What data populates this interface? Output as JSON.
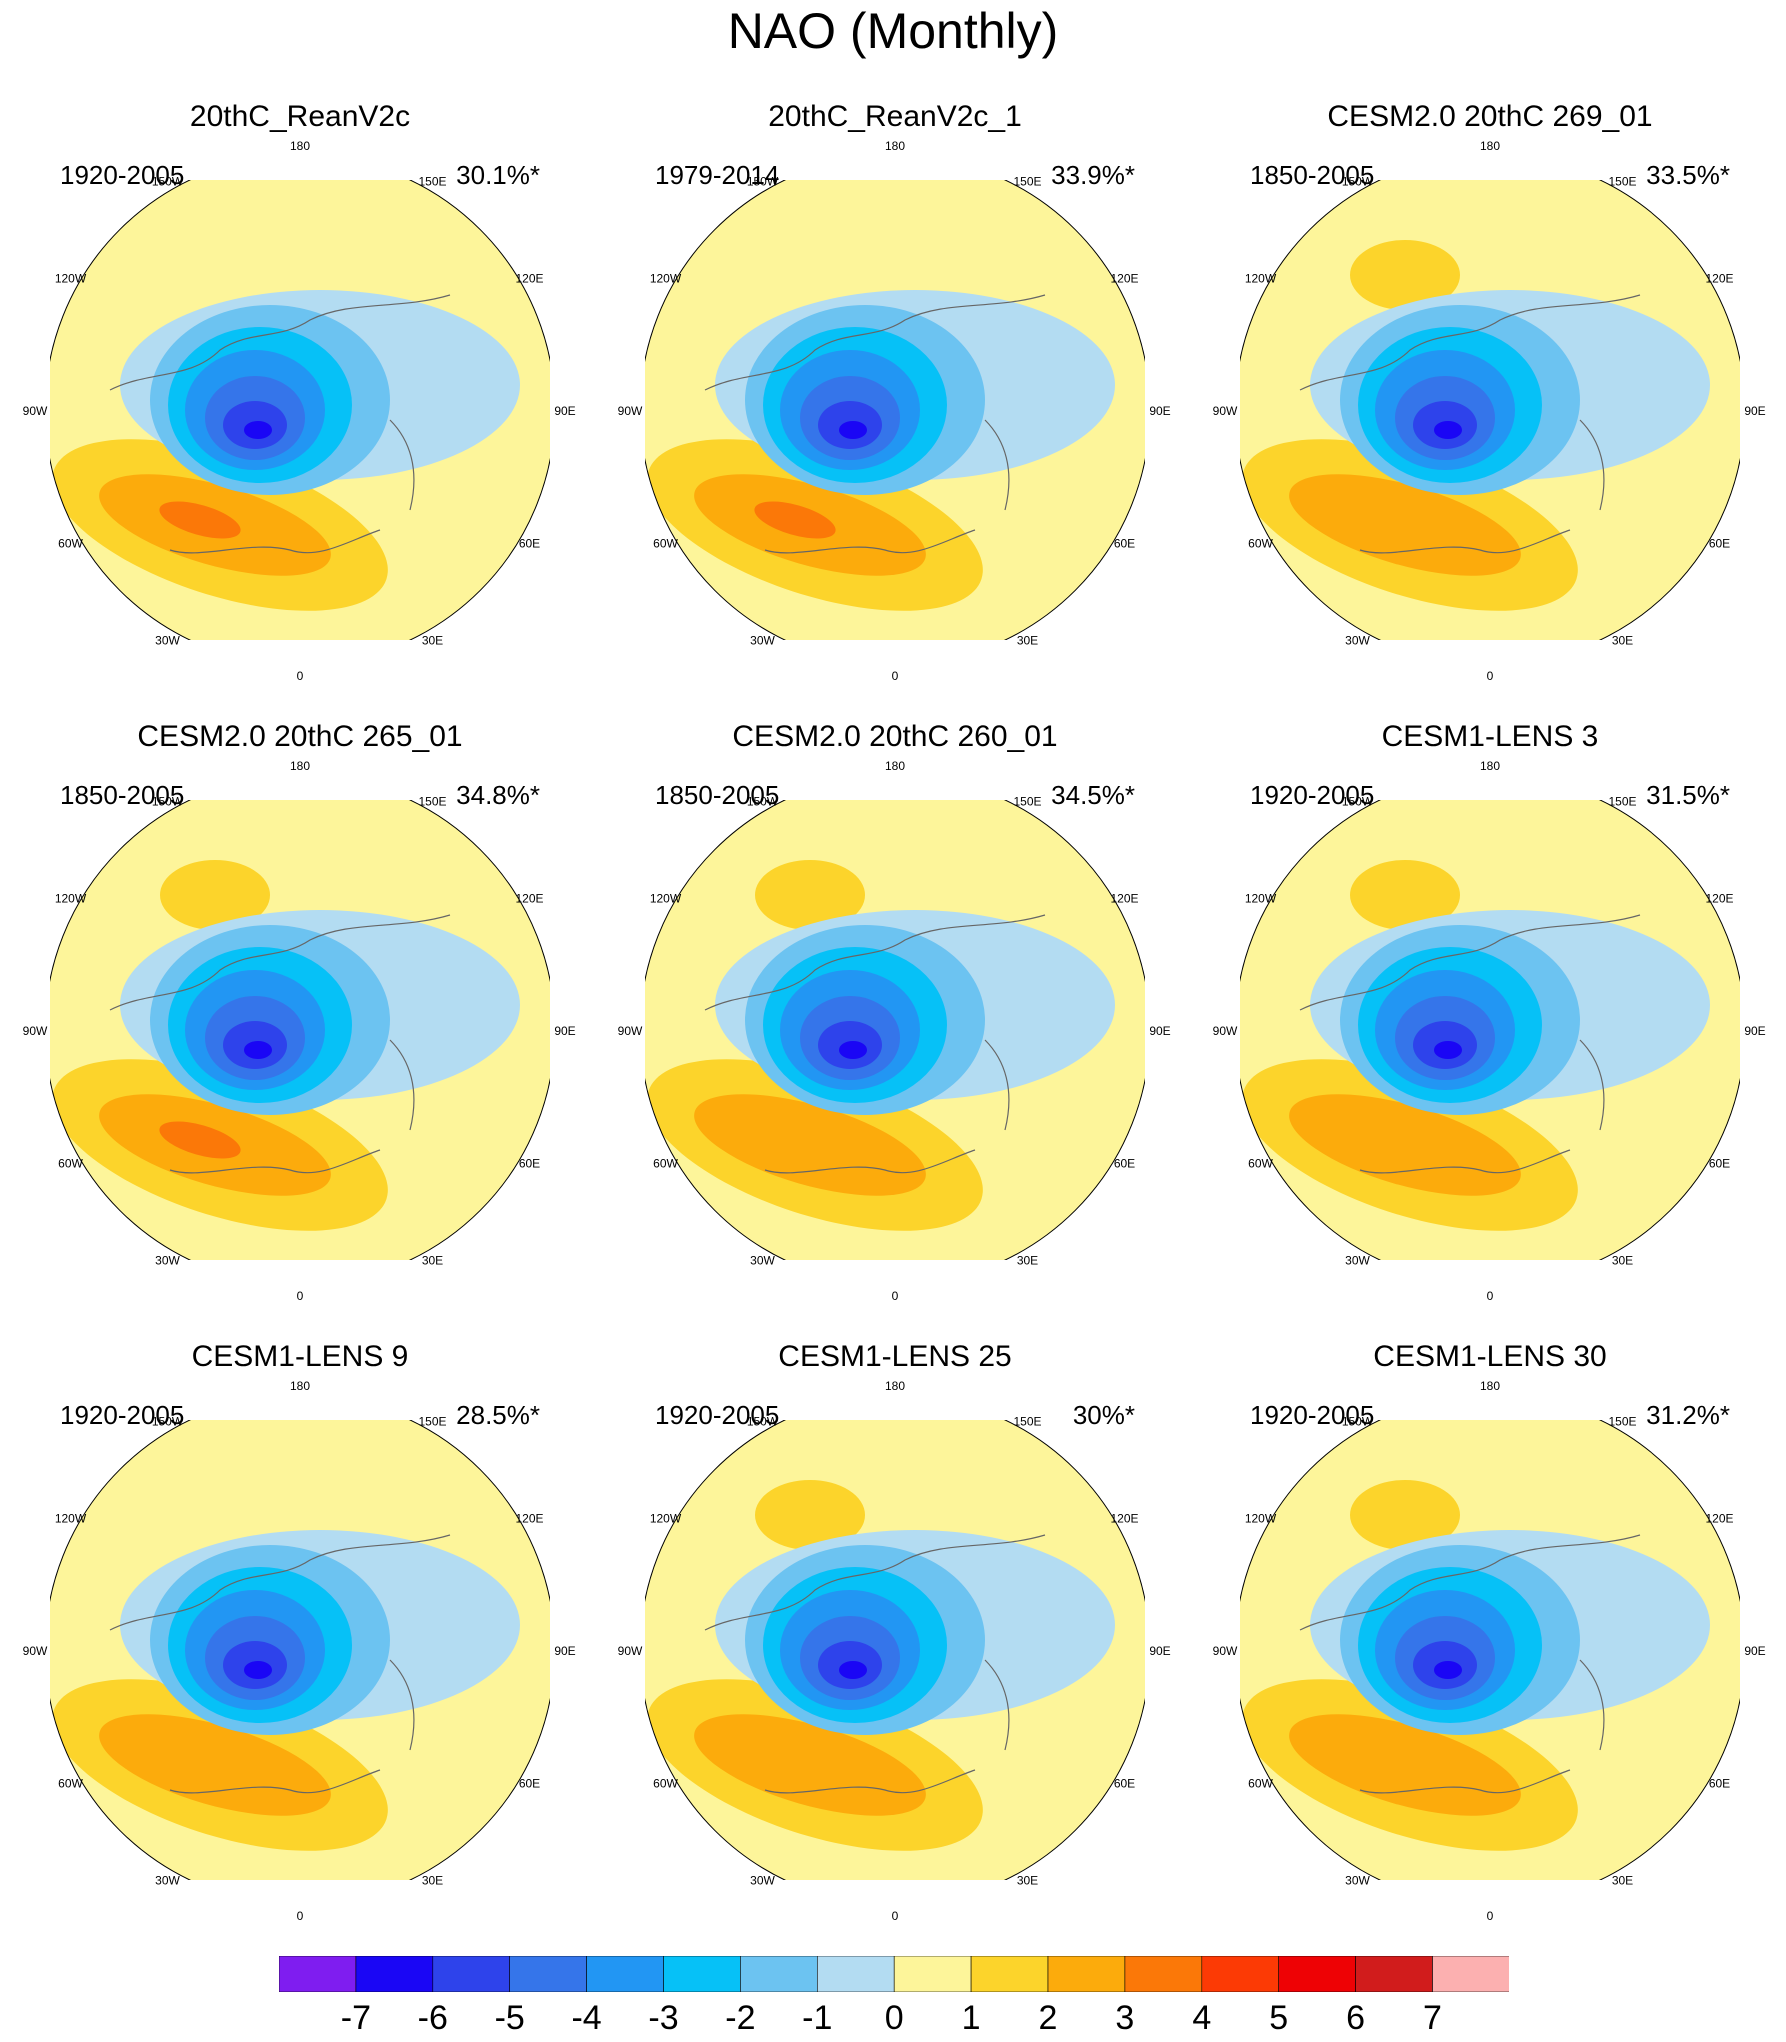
{
  "title": "NAO (Monthly)",
  "panels": [
    {
      "title": "20thC_ReanV2c",
      "period": "1920-2005",
      "variance": "30.1%*"
    },
    {
      "title": "20thC_ReanV2c_1",
      "period": "1979-2014",
      "variance": "33.9%*"
    },
    {
      "title": "CESM2.0 20thC 269_01",
      "period": "1850-2005",
      "variance": "33.5%*"
    },
    {
      "title": "CESM2.0 20thC 265_01",
      "period": "1850-2005",
      "variance": "34.8%*"
    },
    {
      "title": "CESM2.0 20thC 260_01",
      "period": "1850-2005",
      "variance": "34.5%*"
    },
    {
      "title": "CESM1-LENS 3",
      "period": "1920-2005",
      "variance": "31.5%*"
    },
    {
      "title": "CESM1-LENS 9",
      "period": "1920-2005",
      "variance": "28.5%*"
    },
    {
      "title": "CESM1-LENS 25",
      "period": "1920-2005",
      "variance": "30%*"
    },
    {
      "title": "CESM1-LENS 30",
      "period": "1920-2005",
      "variance": "31.2%*"
    }
  ],
  "longitude_labels": [
    "180",
    "150E",
    "120E",
    "90E",
    "60E",
    "30E",
    "0",
    "30W",
    "60W",
    "90W",
    "120W",
    "150W"
  ],
  "colorbar": {
    "labels": [
      "-7",
      "-6",
      "-5",
      "-4",
      "-3",
      "-2",
      "-1",
      "0",
      "1",
      "2",
      "3",
      "4",
      "5",
      "6",
      "7"
    ],
    "colors": [
      "#7f1df0",
      "#1a06f5",
      "#2e43eb",
      "#3575ea",
      "#2296f3",
      "#06c1f7",
      "#6cc3f1",
      "#b3dcf2",
      "#fdf59a",
      "#fcd42b",
      "#fcab0c",
      "#fb7808",
      "#fc3a05",
      "#ee0205",
      "#d11c1c",
      "#fcb0b0"
    ]
  }
}
